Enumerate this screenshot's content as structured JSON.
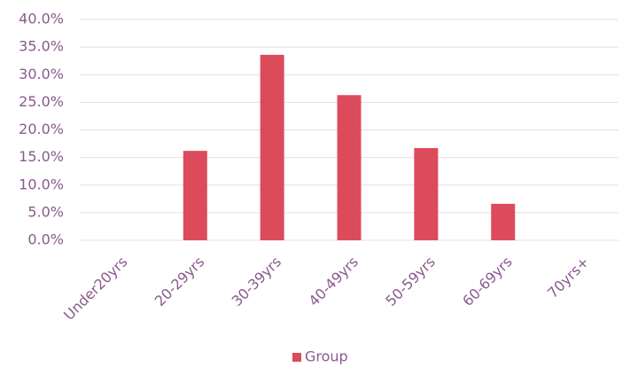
{
  "chart_data": {
    "type": "bar",
    "categories": [
      "Under20yrs",
      "20-29yrs",
      "30-39yrs",
      "40-49yrs",
      "50-59yrs",
      "60-69yrs",
      "70yrs+"
    ],
    "series": [
      {
        "name": "Group",
        "color": "#dc4b5c",
        "values": [
          0,
          16.2,
          33.6,
          26.3,
          16.7,
          6.6,
          0
        ]
      }
    ],
    "ylim": [
      0,
      40
    ],
    "yticks": [
      {
        "value": 0,
        "label": "0.0%"
      },
      {
        "value": 5,
        "label": "5.0%"
      },
      {
        "value": 10,
        "label": "10.0%"
      },
      {
        "value": 15,
        "label": "15.0%"
      },
      {
        "value": 20,
        "label": "20.0%"
      },
      {
        "value": 25,
        "label": "25.0%"
      },
      {
        "value": 30,
        "label": "30.0%"
      },
      {
        "value": 35,
        "label": "35.0%"
      },
      {
        "value": 40,
        "label": "40.0%"
      }
    ],
    "grid": true,
    "legend": "bottom"
  }
}
